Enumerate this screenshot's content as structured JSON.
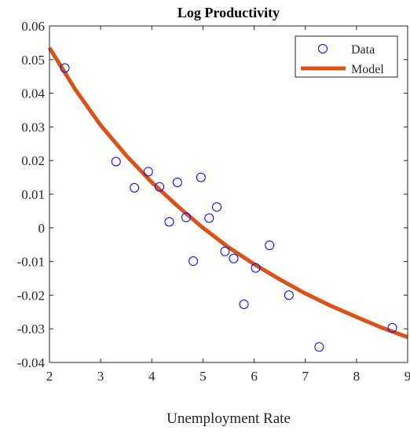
{
  "chart_data": {
    "type": "scatter",
    "title": "Log Productivity",
    "xlabel": "Unemployment Rate",
    "ylabel": "",
    "xlim": [
      2,
      9
    ],
    "ylim": [
      -0.04,
      0.06
    ],
    "xticks": [
      2,
      3,
      4,
      5,
      6,
      7,
      8,
      9
    ],
    "xtick_labels": [
      "2",
      "3",
      "4",
      "5",
      "6",
      "7",
      "8",
      "9"
    ],
    "yticks": [
      -0.04,
      -0.03,
      -0.02,
      -0.01,
      0,
      0.01,
      0.02,
      0.03,
      0.04,
      0.05,
      0.06
    ],
    "ytick_labels": [
      "-0.04",
      "-0.03",
      "-0.02",
      "-0.01",
      "0",
      "0.01",
      "0.02",
      "0.03",
      "0.04",
      "0.05",
      "0.06"
    ],
    "grid": false,
    "legend_position": "top-right",
    "series": [
      {
        "name": "Data",
        "kind": "scatter",
        "color": "#0000ff",
        "marker": "open-circle",
        "points": [
          {
            "x": 2.3,
            "y": 0.0475
          },
          {
            "x": 3.3,
            "y": 0.0197
          },
          {
            "x": 3.66,
            "y": 0.0119
          },
          {
            "x": 3.93,
            "y": 0.0167
          },
          {
            "x": 4.15,
            "y": 0.0122
          },
          {
            "x": 4.34,
            "y": 0.0018
          },
          {
            "x": 4.5,
            "y": 0.0135
          },
          {
            "x": 4.67,
            "y": 0.0031
          },
          {
            "x": 4.81,
            "y": -0.0099
          },
          {
            "x": 4.96,
            "y": 0.015
          },
          {
            "x": 5.12,
            "y": 0.0029
          },
          {
            "x": 5.27,
            "y": 0.0062
          },
          {
            "x": 5.43,
            "y": -0.007
          },
          {
            "x": 5.6,
            "y": -0.0091
          },
          {
            "x": 5.8,
            "y": -0.0227
          },
          {
            "x": 6.03,
            "y": -0.0119
          },
          {
            "x": 6.3,
            "y": -0.0052
          },
          {
            "x": 6.68,
            "y": -0.02
          },
          {
            "x": 7.27,
            "y": -0.0354
          },
          {
            "x": 8.7,
            "y": -0.0297
          }
        ]
      },
      {
        "name": "Model",
        "kind": "line",
        "color": "#d95319",
        "points": [
          {
            "x": 2.0,
            "y": 0.0535
          },
          {
            "x": 2.5,
            "y": 0.0412
          },
          {
            "x": 3.0,
            "y": 0.0305
          },
          {
            "x": 3.5,
            "y": 0.0215
          },
          {
            "x": 4.0,
            "y": 0.0135
          },
          {
            "x": 4.5,
            "y": 0.0065
          },
          {
            "x": 5.0,
            "y": 0.0
          },
          {
            "x": 5.5,
            "y": -0.0058
          },
          {
            "x": 6.0,
            "y": -0.0108
          },
          {
            "x": 6.5,
            "y": -0.0153
          },
          {
            "x": 7.0,
            "y": -0.0195
          },
          {
            "x": 7.5,
            "y": -0.0232
          },
          {
            "x": 8.0,
            "y": -0.0265
          },
          {
            "x": 8.5,
            "y": -0.0297
          },
          {
            "x": 9.0,
            "y": -0.0325
          }
        ]
      }
    ]
  }
}
